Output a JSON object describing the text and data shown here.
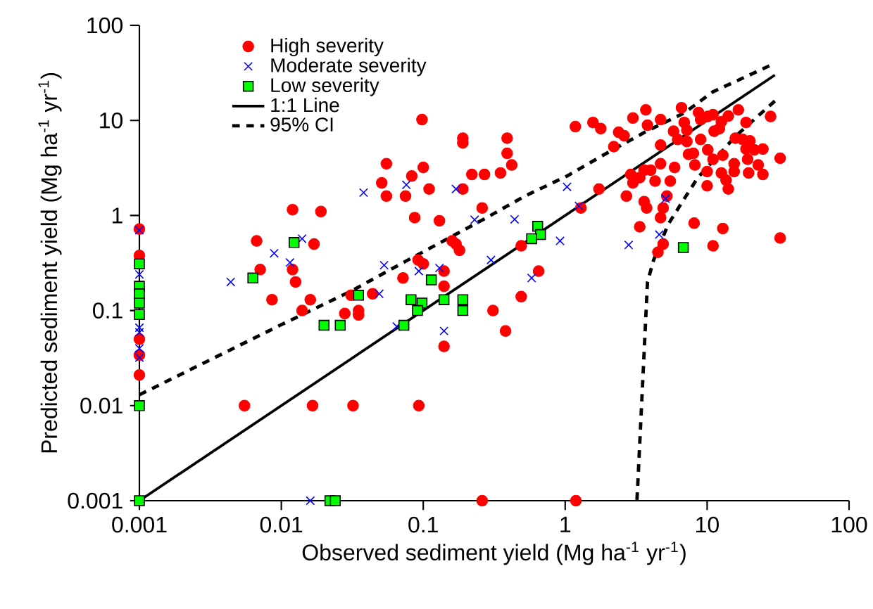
{
  "chart_data": {
    "type": "scatter",
    "xlabel": "Observed sediment yield (Mg ha$^{-1}$ yr$^{-1}$)",
    "ylabel": "Predicted sediment yield (Mg ha$^{-1}$ yr$^{-1}$)",
    "log": "xy",
    "xlim": [
      0.001,
      100
    ],
    "ylim": [
      0.001,
      100
    ],
    "xticks": [
      0.001,
      0.01,
      0.1,
      1,
      10,
      100
    ],
    "yticks": [
      0.001,
      0.01,
      0.1,
      1,
      10,
      100
    ],
    "grid": false,
    "legend": "top left",
    "series": [
      {
        "name": "High severity",
        "marker": "circle",
        "color": "#ff0000",
        "x": [
          0.001,
          0.001,
          0.001,
          0.001,
          0.001,
          0.098,
          0.19,
          0.19,
          0.055,
          0.1,
          0.083,
          0.051,
          0.11,
          0.055,
          0.075,
          0.19,
          0.22,
          0.27,
          0.26,
          0.012,
          0.019,
          0.087,
          0.13,
          0.0067,
          0.017,
          0.012,
          0.0126,
          0.0071,
          0.16,
          0.17,
          0.18,
          0.092,
          0.1,
          0.14,
          0.14,
          0.072,
          0.0086,
          0.016,
          0.014,
          0.028,
          0.031,
          0.035,
          0.035,
          0.044,
          0.14,
          0.31,
          0.0055,
          0.0166,
          0.032,
          0.093,
          0.26,
          1.19,
          0.49,
          0.38,
          0.39,
          0.39,
          0.42,
          0.35,
          1.18,
          1.57,
          1.78,
          2.38,
          2.6,
          2.2,
          3.0,
          3.7,
          3.8,
          4.7,
          4.7,
          5.8,
          6.2,
          6.6,
          6.9,
          7.2,
          7.2,
          8.7,
          10.1,
          11,
          9.0,
          12.6,
          12.2,
          11.2,
          14.1,
          16.6,
          18.8,
          28,
          9.0,
          8.0,
          7.4,
          10.1,
          11,
          8.2,
          10,
          10,
          12.6,
          12.9,
          13.6,
          14.1,
          15.5,
          15.5,
          15.8,
          17.8,
          20,
          18.8,
          19.3,
          21.5,
          24.7,
          22.9,
          19.6,
          24.7,
          32.7,
          32.7,
          5.9,
          5.5,
          4.7,
          4.0,
          4.3,
          3.6,
          2.9,
          3.0,
          3.35,
          2.7,
          3.6,
          3.75,
          4.9,
          5.2,
          1.73,
          3.35,
          4.7,
          4.9,
          4.5,
          8.1,
          12.9,
          11,
          1.29,
          0.49,
          0.65
        ],
        "values": [
          0.72,
          0.38,
          0.05,
          0.034,
          0.021,
          10.2,
          6.5,
          5.8,
          3.5,
          3.2,
          2.6,
          2.2,
          1.9,
          1.6,
          1.6,
          1.9,
          2.7,
          2.7,
          1.2,
          1.15,
          1.1,
          0.95,
          0.88,
          0.54,
          0.5,
          0.27,
          0.2,
          0.27,
          0.54,
          0.5,
          0.43,
          0.34,
          0.31,
          0.26,
          0.18,
          0.22,
          0.13,
          0.13,
          0.1,
          0.093,
          0.145,
          0.1,
          0.09,
          0.15,
          0.042,
          0.1,
          0.01,
          0.01,
          0.01,
          0.01,
          0.001,
          0.001,
          0.14,
          0.061,
          6.5,
          4.5,
          3.4,
          2.8,
          8.6,
          9.5,
          8.2,
          7.5,
          6.9,
          5.3,
          10.6,
          12.9,
          8.9,
          10.2,
          5.5,
          7.7,
          6.3,
          13.6,
          9.5,
          7.9,
          6.0,
          12.1,
          11,
          11.5,
          10.2,
          9.7,
          8.2,
          7.7,
          11.1,
          12.9,
          9.5,
          11,
          6.3,
          4.5,
          4.4,
          4.9,
          3.9,
          3.4,
          2.9,
          2.05,
          2.8,
          4.3,
          2.35,
          1.9,
          3.5,
          2.9,
          6.5,
          6.3,
          6.1,
          5.0,
          3.9,
          4.9,
          5.0,
          3.4,
          2.8,
          2.7,
          4.0,
          0.58,
          3.2,
          2.3,
          3.5,
          3.0,
          2.3,
          3.0,
          2.7,
          2.2,
          2.5,
          1.6,
          1.4,
          1.2,
          1.2,
          1.6,
          1.9,
          0.76,
          0.95,
          0.5,
          0.41,
          0.83,
          0.73,
          0.48,
          1.2,
          0.48,
          0.26
        ]
      },
      {
        "name": "Moderate severity",
        "marker": "cross",
        "color": "#0000ff",
        "x": [
          0.001,
          0.001,
          0.001,
          0.001,
          0.001,
          0.001,
          0.038,
          0.076,
          0.17,
          0.23,
          0.014,
          0.0089,
          0.0115,
          0.0044,
          0.053,
          0.093,
          0.13,
          0.3,
          0.049,
          0.065,
          0.14,
          0.016,
          1.03,
          1.25,
          0.44,
          0.92,
          0.58,
          2.8,
          4.6,
          5.1
        ],
        "values": [
          0.7,
          0.24,
          0.066,
          0.059,
          0.04,
          0.032,
          1.74,
          2.1,
          1.9,
          0.9,
          0.57,
          0.4,
          0.32,
          0.2,
          0.3,
          0.26,
          0.28,
          0.34,
          0.15,
          0.068,
          0.061,
          0.001,
          2.0,
          1.26,
          0.91,
          0.54,
          0.22,
          0.49,
          0.63,
          1.5
        ]
      },
      {
        "name": "Low  severity",
        "marker": "square",
        "color": "#00ff00",
        "x": [
          0.001,
          0.001,
          0.001,
          0.001,
          0.001,
          0.001,
          0.001,
          0.0123,
          0.0063,
          0.114,
          0.035,
          0.02,
          0.026,
          0.073,
          0.082,
          0.098,
          0.091,
          0.14,
          0.19,
          0.19,
          0.022,
          0.024,
          0.64,
          0.67,
          0.58,
          6.8
        ],
        "values": [
          0.31,
          0.18,
          0.15,
          0.12,
          0.091,
          0.01,
          0.001,
          0.52,
          0.22,
          0.21,
          0.145,
          0.07,
          0.07,
          0.07,
          0.13,
          0.12,
          0.1,
          0.13,
          0.13,
          0.1,
          0.001,
          0.001,
          0.77,
          0.63,
          0.57,
          0.46
        ]
      },
      {
        "name": "1:1 Line",
        "type": "line",
        "marker": "none",
        "line_style": "solid",
        "color": "#000000",
        "x": [
          0.001,
          30
        ],
        "values": [
          0.001,
          30
        ]
      },
      {
        "name": "95% CI",
        "type": "line",
        "marker": "none",
        "line_style": "dashed",
        "color": "#000000",
        "x": [
          0.001,
          0.01,
          0.031,
          0.078,
          0.28,
          0.52,
          1.03,
          2.0,
          3.75,
          6.9,
          11,
          28
        ],
        "values": [
          0.013,
          0.071,
          0.16,
          0.34,
          0.95,
          1.6,
          2.6,
          4.6,
          7.7,
          12,
          20,
          38
        ]
      },
      {
        "type": "line",
        "marker": "none",
        "line_style": "dashed",
        "color": "#000000",
        "x": [
          30,
          16,
          8.6,
          6.9,
          5.3,
          4.2,
          3.8,
          3.6,
          3.24,
          3.2
        ],
        "values": [
          16,
          6.9,
          2.5,
          1.5,
          0.8,
          0.34,
          0.2,
          0.037,
          0.0014,
          0.001
        ]
      }
    ]
  }
}
